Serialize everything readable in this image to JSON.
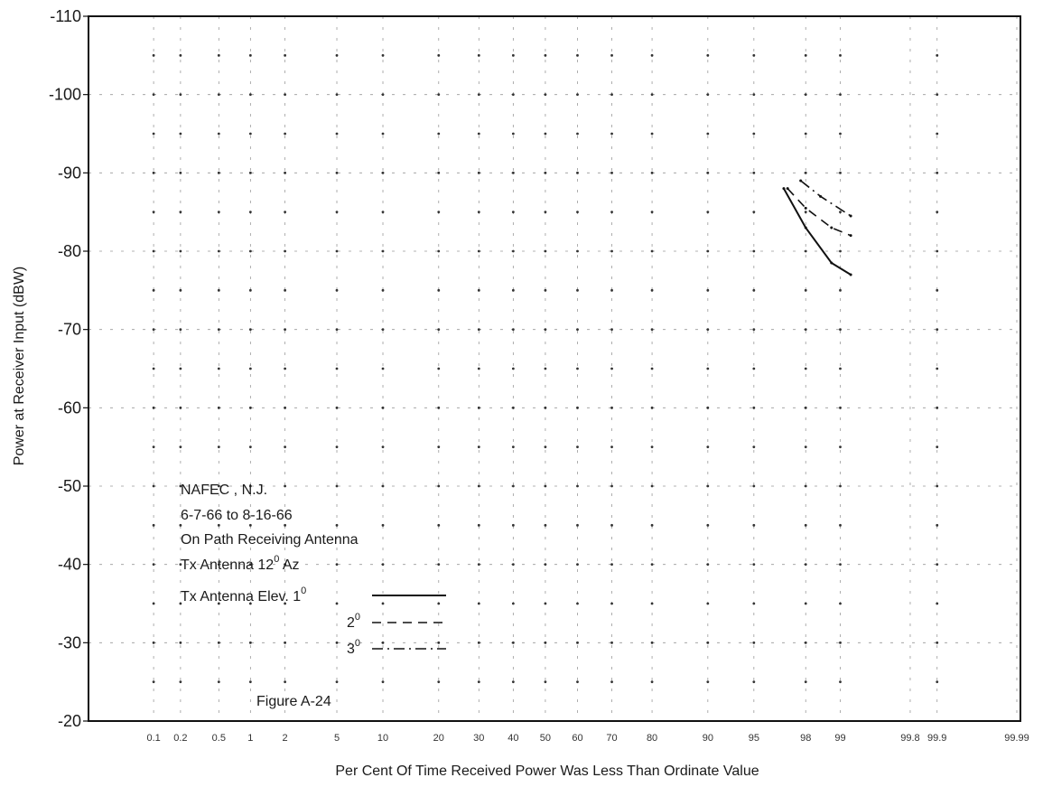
{
  "chart_data": {
    "type": "line",
    "title": "",
    "caption": "Figure A-24",
    "xlabel": "Per Cent Of Time Received Power Was Less Than Ordinate Value",
    "ylabel": "Power at Receiver Input (dBW)",
    "x_scale": "normal-probability",
    "x_ticks": [
      "0.1",
      "0.2",
      "0.5",
      "1",
      "2",
      "5",
      "10",
      "20",
      "30",
      "40",
      "50",
      "60",
      "70",
      "80",
      "90",
      "95",
      "98",
      "99",
      "99.8",
      "99.9",
      "99.99"
    ],
    "y_ticks": [
      "-110",
      "-100",
      "-90",
      "-80",
      "-70",
      "-60",
      "-50",
      "-40",
      "-30",
      "-20"
    ],
    "ylim": [
      -110,
      -20
    ],
    "grid": true,
    "legend": {
      "placement": "lower-left",
      "lines": [
        "NAFEC , N.J.",
        "6-7-66 to 8-16-66",
        "On Path Receiving Antenna"
      ],
      "az_label": "Tx Antenna 12",
      "az_sup": "0",
      "az_suffix": " Az",
      "elev_label": "Tx Antenna Elev. 1",
      "elev_sup": "0"
    },
    "series": [
      {
        "name": "1°",
        "style": "solid",
        "x": [
          97,
          98,
          98.8,
          99.2
        ],
        "y": [
          -88,
          -83,
          -78.5,
          -77
        ]
      },
      {
        "name": "2°",
        "style": "dashed",
        "x": [
          97.2,
          98,
          98.8,
          99.2
        ],
        "y": [
          -88,
          -85.5,
          -83,
          -82
        ]
      },
      {
        "name": "3°",
        "style": "dash-dot",
        "x": [
          97.8,
          98.5,
          99.2
        ],
        "y": [
          -89,
          -87,
          -84.5
        ]
      }
    ],
    "legend_series_labels": [
      {
        "num": "2",
        "sup": "0"
      },
      {
        "num": "3",
        "sup": "0"
      }
    ]
  }
}
